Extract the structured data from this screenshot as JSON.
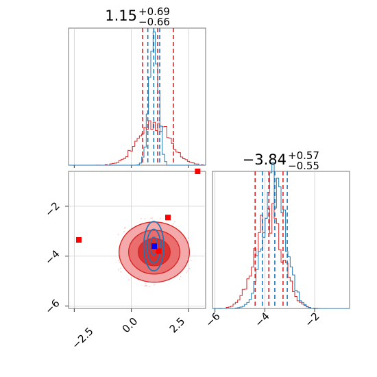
{
  "chart_data": {
    "type": "corner",
    "parameters": [
      {
        "title_value": "1.15",
        "title_plus": "+0.69",
        "title_minus": "−0.66",
        "range": [
          -2.75,
          3.25
        ]
      },
      {
        "title_value": "−3.84",
        "title_plus": "+0.57",
        "title_minus": "−0.55",
        "range": [
          -6.1,
          -0.6
        ]
      }
    ],
    "x_ticks_param1": [
      {
        "value": -2.5,
        "label": "−2.5"
      },
      {
        "value": 0.0,
        "label": "0.0"
      },
      {
        "value": 2.5,
        "label": "2.5"
      }
    ],
    "y_ticks_param2": [
      {
        "value": -2,
        "label": "−2"
      },
      {
        "value": -4,
        "label": "−4"
      },
      {
        "value": -6,
        "label": "−6"
      }
    ],
    "x_ticks_param2": [
      {
        "value": -6,
        "label": "−6"
      },
      {
        "value": -4,
        "label": "−4"
      },
      {
        "value": -2,
        "label": "−2"
      }
    ],
    "grid": true,
    "series": [
      {
        "color": "#d62728",
        "quantiles_param1": [
          0.49,
          1.15,
          1.84
        ],
        "quantiles_param2": [
          -4.39,
          -3.84,
          -3.27
        ],
        "center": [
          1.0,
          -3.84
        ],
        "sigma": [
          0.7,
          0.55
        ]
      },
      {
        "color": "#1f77b4",
        "quantiles_param1": [
          0.72,
          0.98,
          1.24
        ],
        "quantiles_param2": [
          -4.1,
          -3.6,
          -3.1
        ],
        "center": [
          0.98,
          -3.6
        ],
        "sigma": [
          0.2,
          0.45
        ]
      }
    ],
    "markers": [
      {
        "x": -2.3,
        "y": -3.35,
        "color": "#ff0000"
      },
      {
        "x": 1.6,
        "y": -2.45,
        "color": "#ff0000"
      },
      {
        "x": 1.2,
        "y": -3.8,
        "color": "#ff0000"
      },
      {
        "x": 2.9,
        "y": -0.6,
        "color": "#ff0000"
      },
      {
        "x": 1.0,
        "y": -3.6,
        "color": "#0000ff"
      }
    ]
  }
}
